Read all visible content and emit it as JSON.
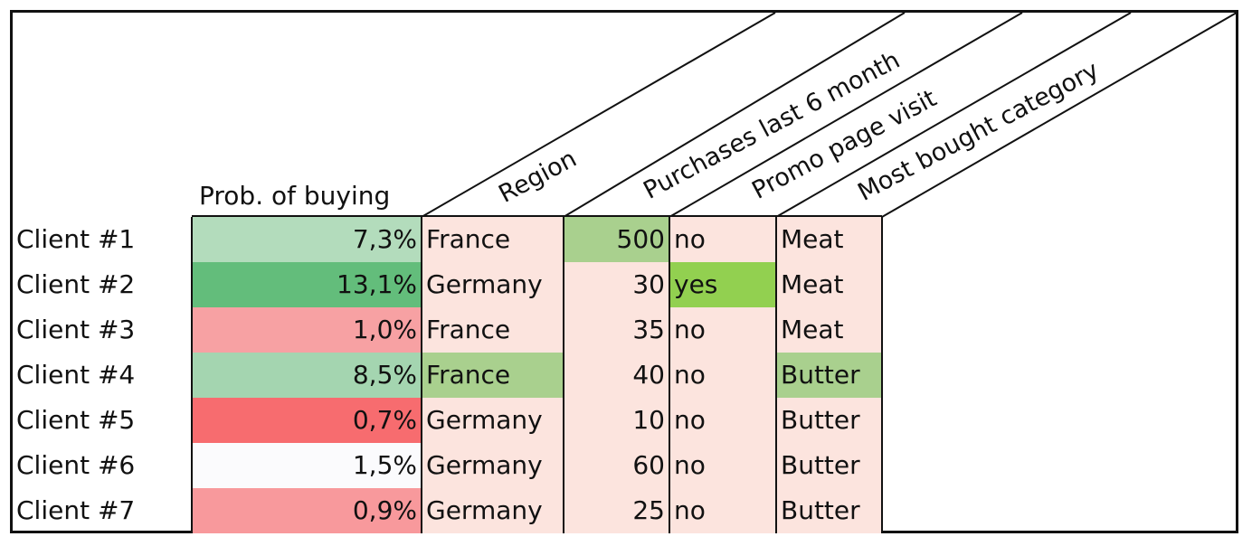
{
  "headers": {
    "prob": "Prob. of buying",
    "region": "Region",
    "purchases": "Purchases last 6 month",
    "promo": "Promo page visit",
    "category": "Most bought category"
  },
  "rows": [
    {
      "client": "Client #1",
      "prob": "7,3%",
      "region": "France",
      "purchases": "500",
      "promo": "no",
      "category": "Meat"
    },
    {
      "client": "Client #2",
      "prob": "13,1%",
      "region": "Germany",
      "purchases": "30",
      "promo": "yes",
      "category": "Meat"
    },
    {
      "client": "Client #3",
      "prob": "1,0%",
      "region": "France",
      "purchases": "35",
      "promo": "no",
      "category": "Meat"
    },
    {
      "client": "Client #4",
      "prob": "8,5%",
      "region": "France",
      "purchases": "40",
      "promo": "no",
      "category": "Butter"
    },
    {
      "client": "Client #5",
      "prob": "0,7%",
      "region": "Germany",
      "purchases": "10",
      "promo": "no",
      "category": "Butter"
    },
    {
      "client": "Client #6",
      "prob": "1,5%",
      "region": "Germany",
      "purchases": "60",
      "promo": "no",
      "category": "Butter"
    },
    {
      "client": "Client #7",
      "prob": "0,9%",
      "region": "Germany",
      "purchases": "25",
      "promo": "no",
      "category": "Butter"
    }
  ],
  "colors": {
    "prob": [
      "#b3dcbc",
      "#63bd7b",
      "#f7a1a3",
      "#a4d5b0",
      "#f76c6f",
      "#fbfbfd",
      "#f8999c"
    ],
    "pink": "#fce4de",
    "highlight_green": "#a9d08e",
    "highlight_bright": "#92d050"
  },
  "highlights": {
    "region": [
      3
    ],
    "purchases": [
      0
    ],
    "promo": [
      1
    ],
    "category": [
      3
    ]
  }
}
